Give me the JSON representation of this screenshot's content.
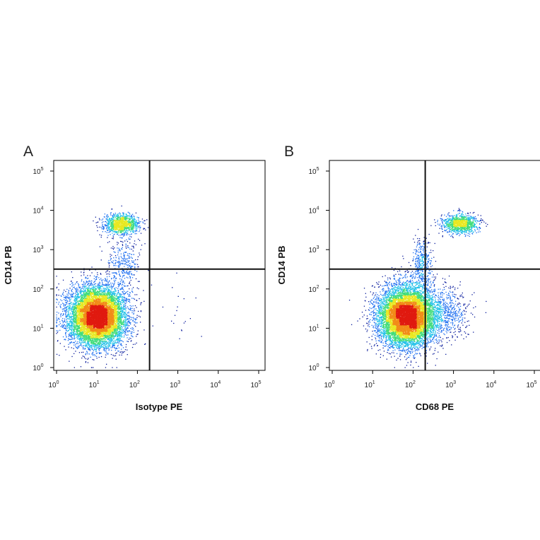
{
  "chart_data": [
    {
      "type": "scatter",
      "subtype": "flow-cytometry-density-dot-plot",
      "panel": "A",
      "xlabel": "Isotype PE",
      "ylabel": "CD14 PB",
      "x_scale": "log",
      "y_scale": "log",
      "xlim": [
        1,
        100000
      ],
      "ylim": [
        1,
        100000
      ],
      "x_ticks": [
        1,
        10,
        100,
        1000,
        10000,
        100000
      ],
      "y_ticks": [
        1,
        10,
        100,
        1000,
        10000,
        100000
      ],
      "quadrant_gate": {
        "x": 200,
        "y": 320
      },
      "populations": [
        {
          "center": [
            10,
            20
          ],
          "spread_decades": [
            0.35,
            0.38
          ],
          "count": 9000,
          "peak_density": "red"
        },
        {
          "center": [
            40,
            4500
          ],
          "spread_decades": [
            0.22,
            0.12
          ],
          "count": 1100,
          "peak_density": "yellow"
        },
        {
          "center": [
            45,
            500
          ],
          "spread_decades": [
            0.2,
            0.4
          ],
          "count": 350,
          "peak_density": "blue"
        },
        {
          "center": [
            1500,
            25
          ],
          "spread_decades": [
            0.3,
            0.35
          ],
          "count": 18,
          "peak_density": "blue"
        }
      ],
      "colormap": [
        "#0a1c9c",
        "#1e6ff0",
        "#20c0e8",
        "#40dc7a",
        "#e8e820",
        "#f28c18",
        "#e01a10"
      ]
    },
    {
      "type": "scatter",
      "subtype": "flow-cytometry-density-dot-plot",
      "panel": "B",
      "xlabel": "CD68 PE",
      "ylabel": "CD14 PB",
      "x_scale": "log",
      "y_scale": "log",
      "xlim": [
        1,
        100000
      ],
      "ylim": [
        1,
        100000
      ],
      "x_ticks": [
        1,
        10,
        100,
        1000,
        10000,
        100000
      ],
      "y_ticks": [
        1,
        10,
        100,
        1000,
        10000,
        100000
      ],
      "quadrant_gate": {
        "x": 200,
        "y": 320
      },
      "populations": [
        {
          "center": [
            70,
            20
          ],
          "spread_decades": [
            0.35,
            0.38
          ],
          "count": 9000,
          "peak_density": "red"
        },
        {
          "center": [
            1500,
            4500
          ],
          "spread_decades": [
            0.22,
            0.12
          ],
          "count": 1100,
          "peak_density": "yellow"
        },
        {
          "center": [
            170,
            400
          ],
          "spread_decades": [
            0.12,
            0.35
          ],
          "count": 400,
          "peak_density": "blue"
        },
        {
          "center": [
            600,
            25
          ],
          "spread_decades": [
            0.3,
            0.35
          ],
          "count": 600,
          "peak_density": "cyan"
        }
      ],
      "colormap": [
        "#0a1c9c",
        "#1e6ff0",
        "#20c0e8",
        "#40dc7a",
        "#e8e820",
        "#f28c18",
        "#e01a10"
      ]
    }
  ]
}
